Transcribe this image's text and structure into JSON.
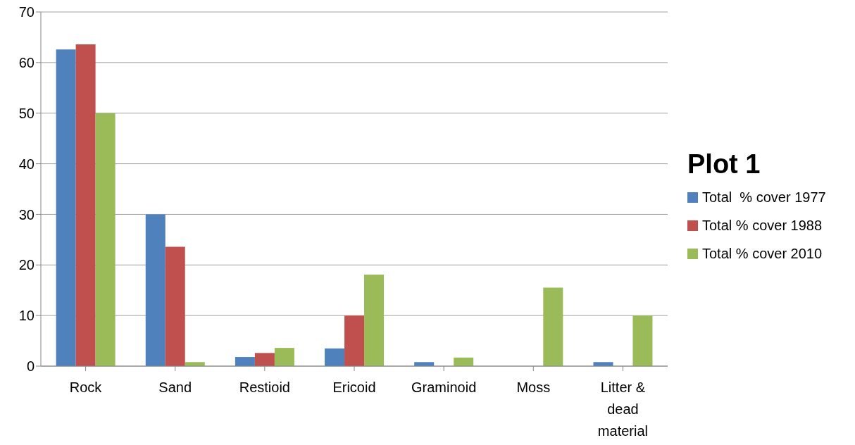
{
  "chart_data": {
    "type": "bar",
    "legend_title": "Plot 1",
    "categories": [
      "Rock",
      "Sand",
      "Restioid",
      "Ericoid",
      "Graminoid",
      "Moss",
      "Litter & dead material"
    ],
    "series": [
      {
        "name": "Total  % cover 1977",
        "color": "#4f81bd",
        "values": [
          62.6,
          30,
          1.8,
          3.5,
          0.8,
          0,
          0.8
        ]
      },
      {
        "name": "Total % cover 1988",
        "color": "#c0504d",
        "values": [
          63.6,
          23.6,
          2.6,
          10,
          0,
          0,
          0
        ]
      },
      {
        "name": "Total % cover 2010",
        "color": "#9bbb59",
        "values": [
          50,
          0.8,
          3.6,
          18.1,
          1.7,
          15.5,
          10
        ]
      }
    ],
    "ylim": [
      0,
      70
    ],
    "yticks": [
      0,
      10,
      20,
      30,
      40,
      50,
      60,
      70
    ],
    "grid": "y",
    "legend": "right"
  }
}
